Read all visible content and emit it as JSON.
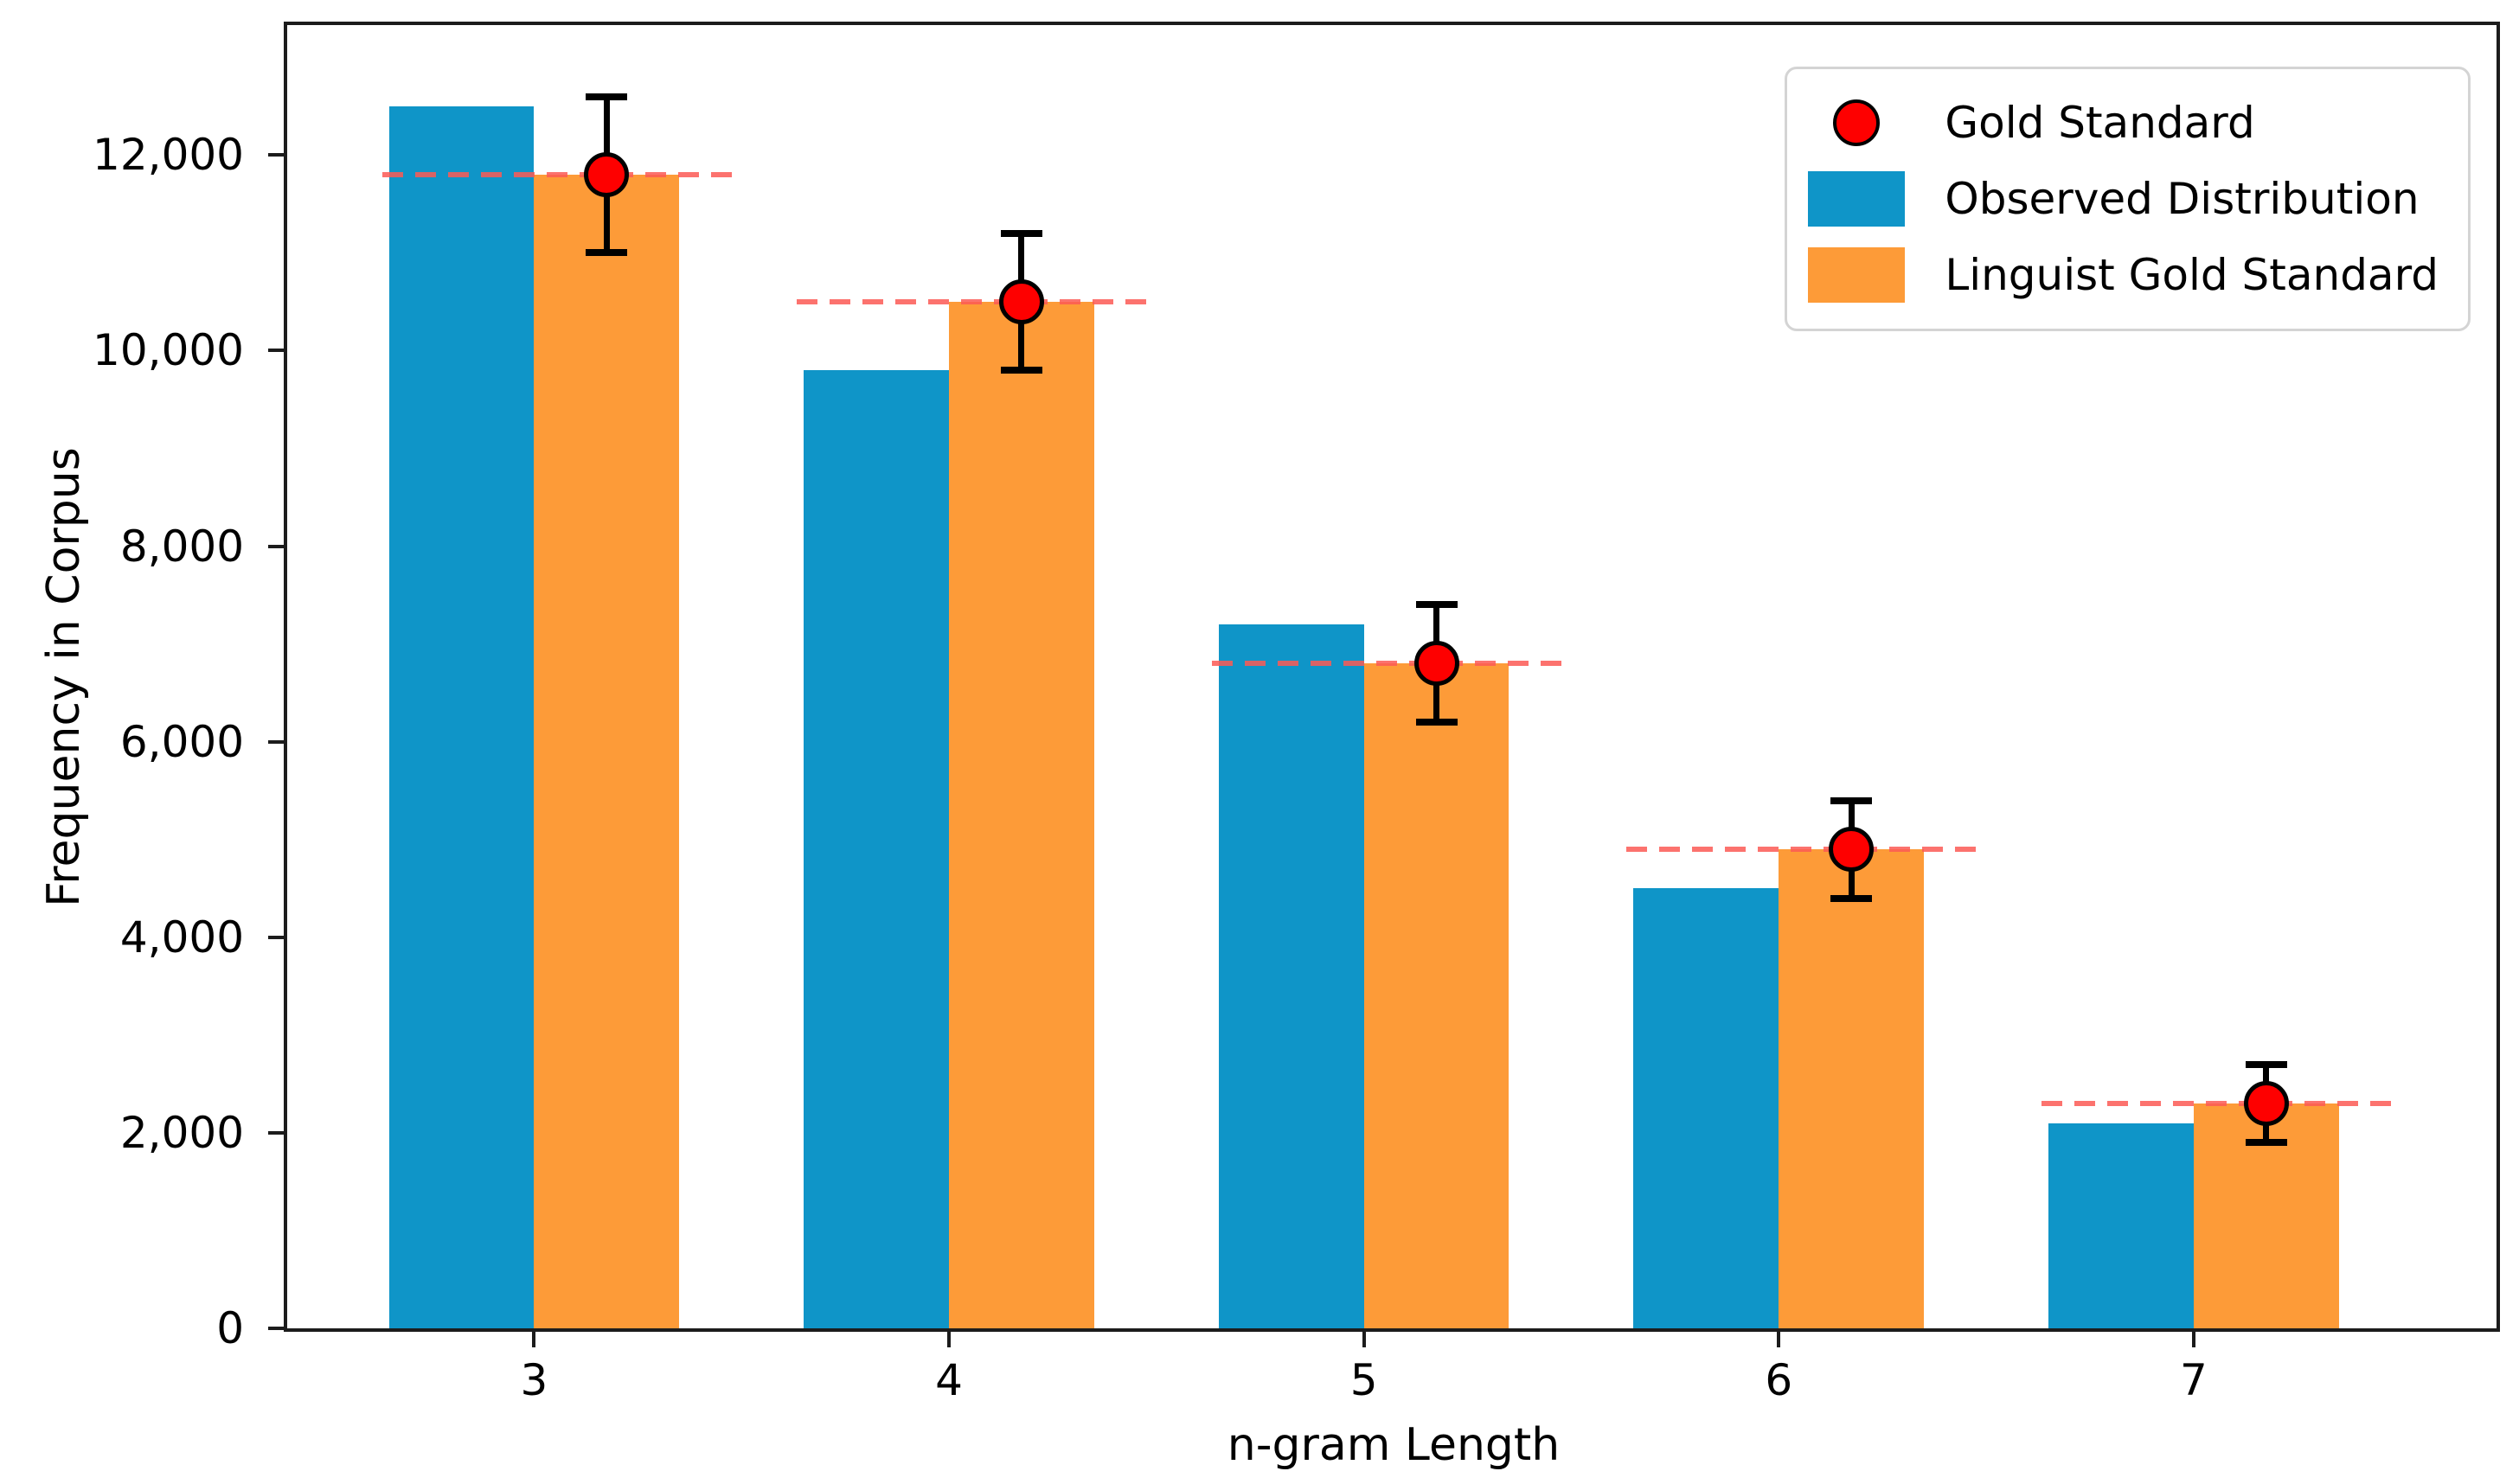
{
  "chart_data": {
    "type": "bar",
    "title": "",
    "xlabel": "n-gram Length",
    "ylabel": "Frequency in Corpus",
    "categories": [
      "3",
      "4",
      "5",
      "6",
      "7"
    ],
    "series": [
      {
        "name": "Observed Distribution",
        "color": "#0f95c8",
        "values": [
          12500,
          9800,
          7200,
          4500,
          2100
        ]
      },
      {
        "name": "Linguist Gold Standard",
        "color": "#fd9b38",
        "values": [
          11800,
          10500,
          6800,
          4900,
          2300
        ]
      }
    ],
    "gold_points": {
      "name": "Gold Standard",
      "color": "#fe0000",
      "edge_color": "#000000",
      "values": [
        11800,
        10500,
        6800,
        4900,
        2300
      ],
      "errors": [
        800,
        700,
        600,
        500,
        400
      ]
    },
    "reference_lines": {
      "style": "dashed",
      "color": "#fc5a55",
      "values": [
        11800,
        10500,
        6800,
        4900,
        2300
      ]
    },
    "bar_width_category_units": 0.35,
    "xlim": [
      2.405,
      7.73
    ],
    "ylim": [
      0,
      13330
    ],
    "yticks": {
      "values": [
        0,
        2000,
        4000,
        6000,
        8000,
        10000,
        12000
      ],
      "labels": [
        "0",
        "2,000",
        "4,000",
        "6,000",
        "8,000",
        "10,000",
        "12,000"
      ]
    },
    "grid": false,
    "legend_position": "upper right"
  },
  "legend": {
    "items": [
      {
        "label": "Gold Standard",
        "marker": "circle",
        "color": "#fe0000"
      },
      {
        "label": "Observed Distribution",
        "marker": "patch",
        "color": "#0f95c8"
      },
      {
        "label": "Linguist Gold Standard",
        "marker": "patch",
        "color": "#fd9b38"
      }
    ]
  }
}
